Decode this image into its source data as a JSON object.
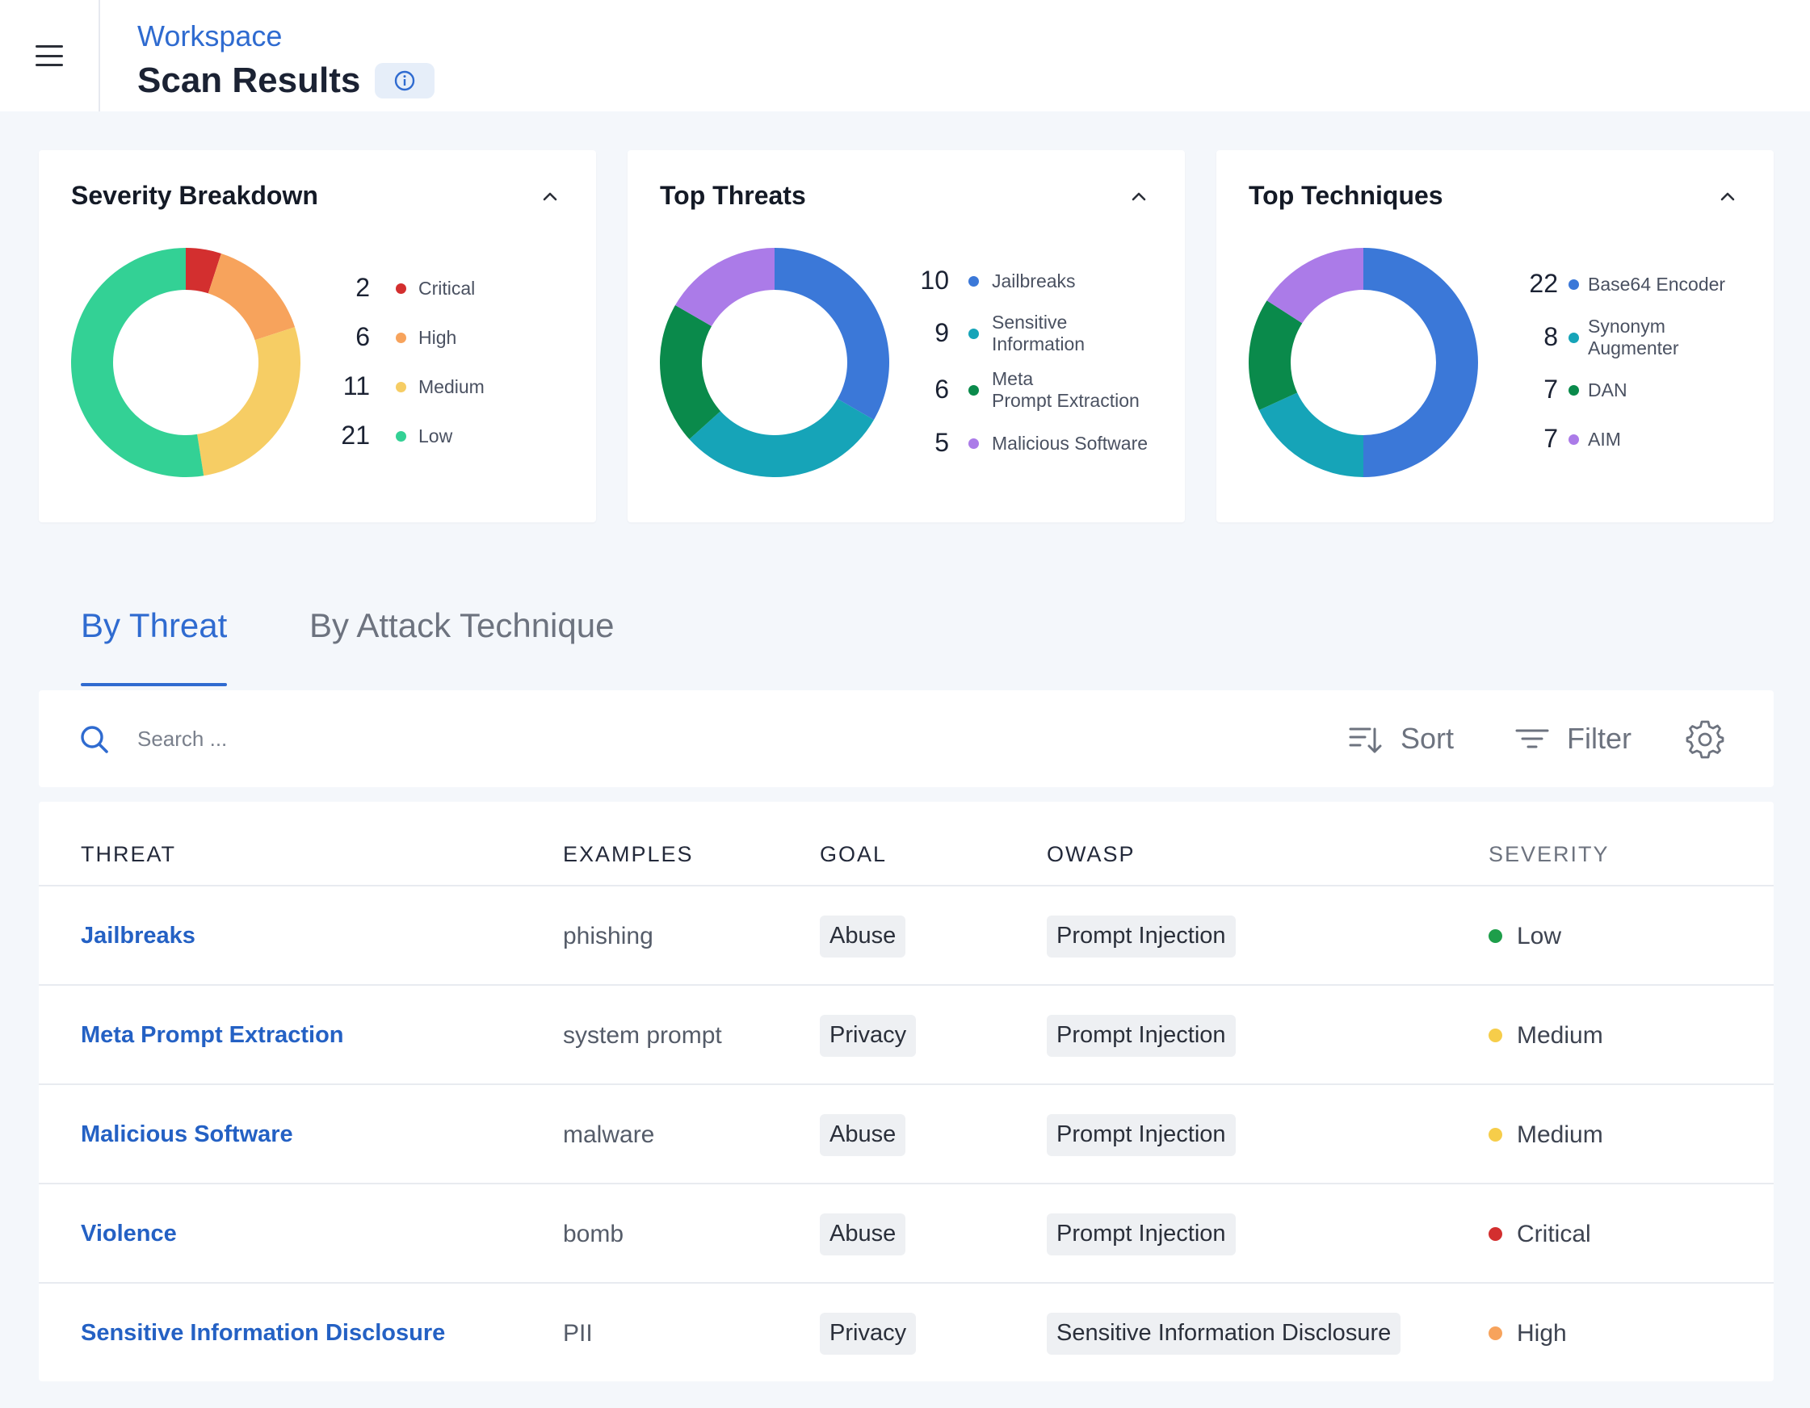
{
  "header": {
    "breadcrumb": "Workspace",
    "title": "Scan Results",
    "menu_icon": "hamburger-menu-icon",
    "info_icon": "info-icon"
  },
  "cards": {
    "severity": {
      "title": "Severity Breakdown",
      "items": [
        {
          "value": 2,
          "label": "Critical",
          "color": "#d32f2f"
        },
        {
          "value": 6,
          "label": "High",
          "color": "#f7a35c"
        },
        {
          "value": 11,
          "label": "Medium",
          "color": "#f6cd64"
        },
        {
          "value": 21,
          "label": "Low",
          "color": "#33d195"
        }
      ]
    },
    "threats": {
      "title": "Top Threats",
      "items": [
        {
          "value": 10,
          "label": "Jailbreaks",
          "color": "#3b78d8"
        },
        {
          "value": 9,
          "label": "Sensitive\nInformation",
          "color": "#16a4b8"
        },
        {
          "value": 6,
          "label": "Meta\nPrompt Extraction",
          "color": "#0a8a4b"
        },
        {
          "value": 5,
          "label": "Malicious Software",
          "color": "#ab7be8"
        }
      ]
    },
    "techniques": {
      "title": "Top Techniques",
      "items": [
        {
          "value": 22,
          "label": "Base64 Encoder",
          "color": "#3b78d8"
        },
        {
          "value": 8,
          "label": "Synonym\nAugmenter",
          "color": "#16a4b8"
        },
        {
          "value": 7,
          "label": "DAN",
          "color": "#0a8a4b"
        },
        {
          "value": 7,
          "label": "AIM",
          "color": "#ab7be8"
        }
      ]
    }
  },
  "tabs": {
    "by_threat": "By Threat",
    "by_technique": "By Attack Technique"
  },
  "toolbar": {
    "search_placeholder": "Search ...",
    "sort_label": "Sort",
    "filter_label": "Filter"
  },
  "table": {
    "headers": {
      "threat": "THREAT",
      "examples": "EXAMPLES",
      "goal": "GOAL",
      "owasp": "OWASP",
      "severity": "SEVERITY"
    },
    "rows": [
      {
        "threat": "Jailbreaks",
        "example": "phishing",
        "goal": "Abuse",
        "owasp": "Prompt Injection",
        "severity": "Low",
        "severity_color": "#1e9e4a"
      },
      {
        "threat": "Meta Prompt Extraction",
        "example": "system prompt",
        "goal": "Privacy",
        "owasp": "Prompt Injection",
        "severity": "Medium",
        "severity_color": "#f6cd4a"
      },
      {
        "threat": "Malicious Software",
        "example": "malware",
        "goal": "Abuse",
        "owasp": "Prompt Injection",
        "severity": "Medium",
        "severity_color": "#f6cd4a"
      },
      {
        "threat": "Violence",
        "example": "bomb",
        "goal": "Abuse",
        "owasp": "Prompt Injection",
        "severity": "Critical",
        "severity_color": "#d32f2f"
      },
      {
        "threat": "Sensitive Information Disclosure",
        "example": "PII",
        "goal": "Privacy",
        "owasp": "Sensitive Information Disclosure",
        "severity": "High",
        "severity_color": "#f7a35c"
      }
    ]
  }
}
